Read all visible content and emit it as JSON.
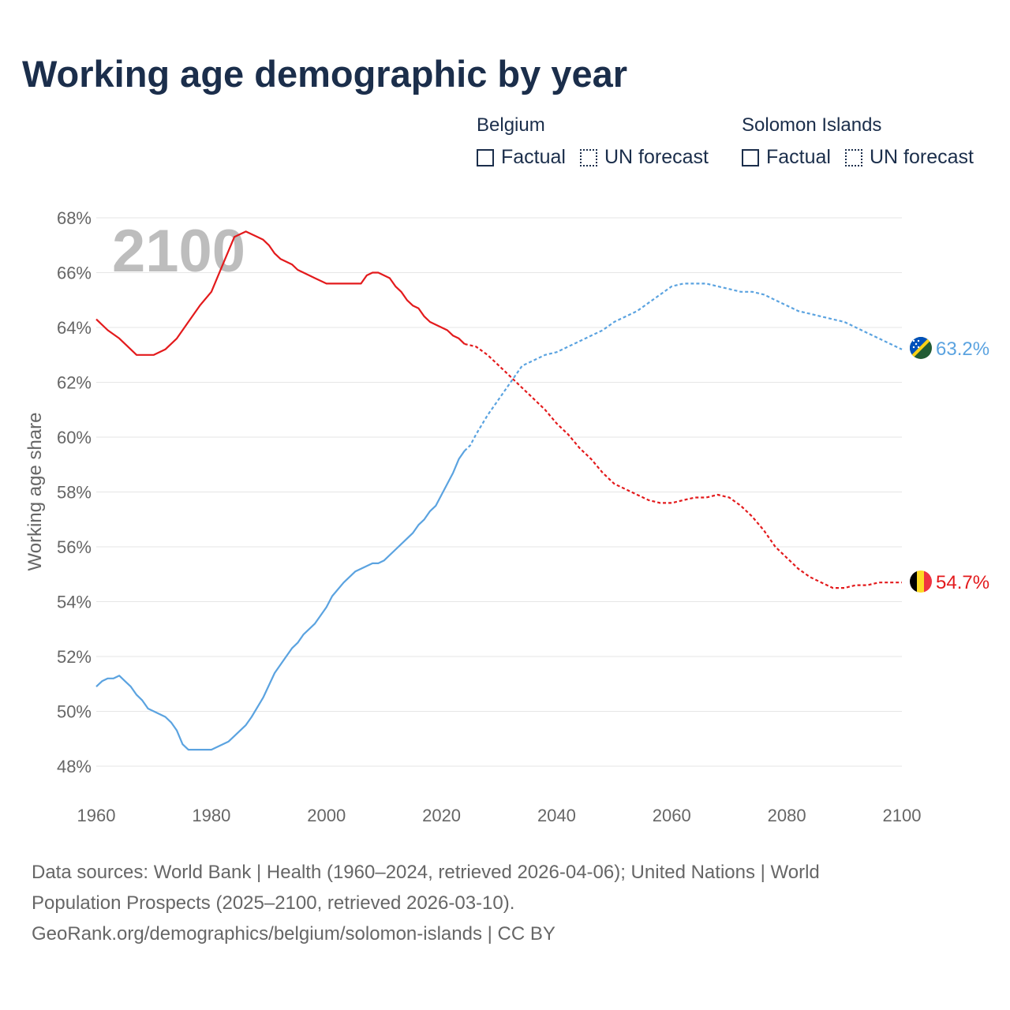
{
  "title": "Working age demographic by year",
  "legend": {
    "groups": [
      {
        "name": "Belgium",
        "color": "#e31a1c",
        "items": [
          {
            "label": "Factual",
            "style": "solid"
          },
          {
            "label": "UN forecast",
            "style": "dotted"
          }
        ]
      },
      {
        "name": "Solomon Islands",
        "color": "#5ba3e0",
        "items": [
          {
            "label": "Factual",
            "style": "solid"
          },
          {
            "label": "UN forecast",
            "style": "dotted"
          }
        ]
      }
    ]
  },
  "chart_data": {
    "type": "line",
    "title": "Working age demographic by year",
    "xlabel": "",
    "ylabel": "Working age share",
    "xlim": [
      1960,
      2100
    ],
    "ylim": [
      47,
      68
    ],
    "x_ticks": [
      "1960",
      "1980",
      "2000",
      "2020",
      "2040",
      "2060",
      "2080",
      "2100"
    ],
    "y_ticks": [
      "48%",
      "50%",
      "52%",
      "54%",
      "56%",
      "58%",
      "60%",
      "62%",
      "64%",
      "66%",
      "68%"
    ],
    "year_overlay": "2100",
    "factual_until": 2024,
    "series": [
      {
        "name": "Belgium",
        "color": "#e31a1c",
        "end_label": "54.7%",
        "flag": "belgium",
        "points": [
          [
            1960,
            64.3
          ],
          [
            1962,
            63.9
          ],
          [
            1964,
            63.6
          ],
          [
            1967,
            63.0
          ],
          [
            1970,
            63.0
          ],
          [
            1972,
            63.2
          ],
          [
            1974,
            63.6
          ],
          [
            1976,
            64.2
          ],
          [
            1978,
            64.8
          ],
          [
            1980,
            65.3
          ],
          [
            1982,
            66.3
          ],
          [
            1984,
            67.3
          ],
          [
            1986,
            67.5
          ],
          [
            1988,
            67.3
          ],
          [
            1989,
            67.2
          ],
          [
            1990,
            67.0
          ],
          [
            1991,
            66.7
          ],
          [
            1992,
            66.5
          ],
          [
            1994,
            66.3
          ],
          [
            1995,
            66.1
          ],
          [
            1998,
            65.8
          ],
          [
            2000,
            65.6
          ],
          [
            2006,
            65.6
          ],
          [
            2007,
            65.9
          ],
          [
            2008,
            66.0
          ],
          [
            2009,
            66.0
          ],
          [
            2011,
            65.8
          ],
          [
            2012,
            65.5
          ],
          [
            2013,
            65.3
          ],
          [
            2014,
            65.0
          ],
          [
            2015,
            64.8
          ],
          [
            2016,
            64.7
          ],
          [
            2017,
            64.4
          ],
          [
            2018,
            64.2
          ],
          [
            2020,
            64.0
          ],
          [
            2021,
            63.9
          ],
          [
            2022,
            63.7
          ],
          [
            2023,
            63.6
          ],
          [
            2024,
            63.4
          ],
          [
            2026,
            63.3
          ],
          [
            2028,
            63.0
          ],
          [
            2030,
            62.6
          ],
          [
            2032,
            62.2
          ],
          [
            2034,
            61.8
          ],
          [
            2036,
            61.4
          ],
          [
            2038,
            61.0
          ],
          [
            2040,
            60.5
          ],
          [
            2042,
            60.1
          ],
          [
            2044,
            59.6
          ],
          [
            2046,
            59.2
          ],
          [
            2048,
            58.7
          ],
          [
            2050,
            58.3
          ],
          [
            2052,
            58.1
          ],
          [
            2054,
            57.9
          ],
          [
            2056,
            57.7
          ],
          [
            2058,
            57.6
          ],
          [
            2060,
            57.6
          ],
          [
            2062,
            57.7
          ],
          [
            2064,
            57.8
          ],
          [
            2066,
            57.8
          ],
          [
            2068,
            57.9
          ],
          [
            2070,
            57.8
          ],
          [
            2072,
            57.5
          ],
          [
            2074,
            57.1
          ],
          [
            2076,
            56.6
          ],
          [
            2078,
            56.0
          ],
          [
            2080,
            55.6
          ],
          [
            2082,
            55.2
          ],
          [
            2084,
            54.9
          ],
          [
            2086,
            54.7
          ],
          [
            2088,
            54.5
          ],
          [
            2090,
            54.5
          ],
          [
            2092,
            54.6
          ],
          [
            2094,
            54.6
          ],
          [
            2096,
            54.7
          ],
          [
            2100,
            54.7
          ]
        ]
      },
      {
        "name": "Solomon Islands",
        "color": "#5ba3e0",
        "end_label": "63.2%",
        "flag": "solomon-islands",
        "points": [
          [
            1960,
            50.9
          ],
          [
            1961,
            51.1
          ],
          [
            1962,
            51.2
          ],
          [
            1963,
            51.2
          ],
          [
            1964,
            51.3
          ],
          [
            1965,
            51.1
          ],
          [
            1966,
            50.9
          ],
          [
            1967,
            50.6
          ],
          [
            1968,
            50.4
          ],
          [
            1969,
            50.1
          ],
          [
            1970,
            50.0
          ],
          [
            1972,
            49.8
          ],
          [
            1973,
            49.6
          ],
          [
            1974,
            49.3
          ],
          [
            1975,
            48.8
          ],
          [
            1976,
            48.6
          ],
          [
            1977,
            48.6
          ],
          [
            1980,
            48.6
          ],
          [
            1983,
            48.9
          ],
          [
            1984,
            49.1
          ],
          [
            1986,
            49.5
          ],
          [
            1987,
            49.8
          ],
          [
            1989,
            50.5
          ],
          [
            1991,
            51.4
          ],
          [
            1993,
            52.0
          ],
          [
            1994,
            52.3
          ],
          [
            1995,
            52.5
          ],
          [
            1996,
            52.8
          ],
          [
            1998,
            53.2
          ],
          [
            2000,
            53.8
          ],
          [
            2001,
            54.2
          ],
          [
            2003,
            54.7
          ],
          [
            2005,
            55.1
          ],
          [
            2008,
            55.4
          ],
          [
            2009,
            55.4
          ],
          [
            2010,
            55.5
          ],
          [
            2012,
            55.9
          ],
          [
            2014,
            56.3
          ],
          [
            2015,
            56.5
          ],
          [
            2016,
            56.8
          ],
          [
            2017,
            57.0
          ],
          [
            2018,
            57.3
          ],
          [
            2019,
            57.5
          ],
          [
            2020,
            57.9
          ],
          [
            2021,
            58.3
          ],
          [
            2022,
            58.7
          ],
          [
            2023,
            59.2
          ],
          [
            2024,
            59.5
          ],
          [
            2025,
            59.7
          ],
          [
            2026,
            60.1
          ],
          [
            2028,
            60.8
          ],
          [
            2030,
            61.4
          ],
          [
            2032,
            62.0
          ],
          [
            2034,
            62.6
          ],
          [
            2036,
            62.8
          ],
          [
            2038,
            63.0
          ],
          [
            2040,
            63.1
          ],
          [
            2042,
            63.3
          ],
          [
            2044,
            63.5
          ],
          [
            2046,
            63.7
          ],
          [
            2048,
            63.9
          ],
          [
            2050,
            64.2
          ],
          [
            2052,
            64.4
          ],
          [
            2054,
            64.6
          ],
          [
            2056,
            64.9
          ],
          [
            2058,
            65.2
          ],
          [
            2060,
            65.5
          ],
          [
            2062,
            65.6
          ],
          [
            2064,
            65.6
          ],
          [
            2066,
            65.6
          ],
          [
            2068,
            65.5
          ],
          [
            2070,
            65.4
          ],
          [
            2072,
            65.3
          ],
          [
            2074,
            65.3
          ],
          [
            2076,
            65.2
          ],
          [
            2078,
            65.0
          ],
          [
            2080,
            64.8
          ],
          [
            2082,
            64.6
          ],
          [
            2084,
            64.5
          ],
          [
            2086,
            64.4
          ],
          [
            2088,
            64.3
          ],
          [
            2090,
            64.2
          ],
          [
            2092,
            64.0
          ],
          [
            2094,
            63.8
          ],
          [
            2096,
            63.6
          ],
          [
            2098,
            63.4
          ],
          [
            2100,
            63.2
          ]
        ]
      }
    ]
  },
  "footer": {
    "line1": "Data sources: World Bank | Health (1960–2024, retrieved 2026-04-06); United Nations | World",
    "line2": "Population Prospects (2025–2100, retrieved 2026-03-10).",
    "line3": "GeoRank.org/demographics/belgium/solomon-islands | CC BY"
  }
}
